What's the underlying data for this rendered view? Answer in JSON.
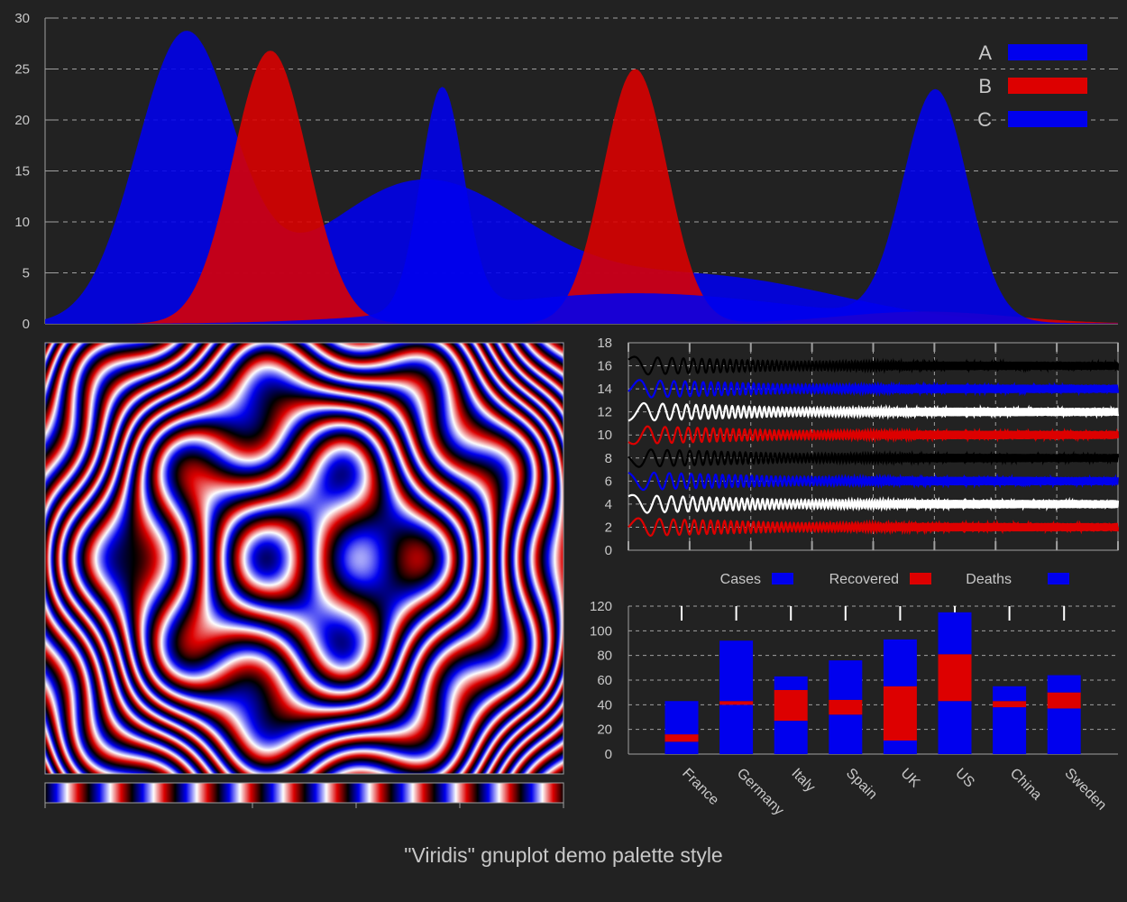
{
  "caption": "\"Viridis\" gnuplot demo palette style",
  "colors": {
    "background": "#222222",
    "axis": "#a0a0a0",
    "text": "#c8c8c8",
    "blue": "#0000ee",
    "red": "#dd0000",
    "black": "#000000",
    "white": "#ffffff"
  },
  "chart_data": [
    {
      "type": "area",
      "ylim": [
        0,
        30
      ],
      "xlim": [
        0,
        1
      ],
      "yticks": [
        "0",
        "5",
        "10",
        "15",
        "20",
        "25",
        "30"
      ],
      "grid": true,
      "legend_position": "top-right",
      "series": [
        {
          "name": "A",
          "color": "#0000ee",
          "peaks": [
            {
              "x": 0.13,
              "height": 27.5,
              "width": 0.045
            },
            {
              "x": 0.35,
              "height": 13.8,
              "width": 0.1
            },
            {
              "x": 0.62,
              "height": 4.5,
              "width": 0.12
            }
          ]
        },
        {
          "name": "B",
          "color": "#dd0000",
          "peaks": [
            {
              "x": 0.21,
              "height": 26.8,
              "width": 0.035
            },
            {
              "x": 0.55,
              "height": 25.0,
              "width": 0.03
            },
            {
              "x": 0.82,
              "height": 1.2,
              "width": 0.08
            }
          ]
        },
        {
          "name": "C",
          "color": "#0000ee",
          "peaks": [
            {
              "x": 0.37,
              "height": 21.8,
              "width": 0.02
            },
            {
              "x": 0.83,
              "height": 22.5,
              "width": 0.03
            },
            {
              "x": 0.55,
              "height": 3.0,
              "width": 0.15
            }
          ]
        }
      ]
    },
    {
      "type": "heatmap",
      "description_function": "sin(x^2 + y^2) style interference pattern with blue-white-red palette",
      "palette": [
        "#000000",
        "#0000ee",
        "#ffffff",
        "#dd0000"
      ],
      "colorbar": true
    },
    {
      "type": "line",
      "ylim": [
        0,
        18
      ],
      "yticks": [
        "0",
        "2",
        "4",
        "6",
        "8",
        "10",
        "12",
        "14",
        "16",
        "18"
      ],
      "grid": true,
      "series": [
        {
          "offset": 2,
          "color": "#dd0000"
        },
        {
          "offset": 4,
          "color": "#ffffff"
        },
        {
          "offset": 6,
          "color": "#0000ee"
        },
        {
          "offset": 8,
          "color": "#000000"
        },
        {
          "offset": 10,
          "color": "#dd0000"
        },
        {
          "offset": 12,
          "color": "#ffffff"
        },
        {
          "offset": 14,
          "color": "#0000ee"
        },
        {
          "offset": 16,
          "color": "#000000"
        }
      ]
    },
    {
      "type": "bar",
      "stacked": true,
      "ylim": [
        0,
        120
      ],
      "yticks": [
        "0",
        "20",
        "40",
        "60",
        "80",
        "100",
        "120"
      ],
      "grid": true,
      "legend_position": "top",
      "categories": [
        "France",
        "Germany",
        "Italy",
        "Spain",
        "UK",
        "US",
        "China",
        "Sweden"
      ],
      "series": [
        {
          "name": "Cases",
          "color": "#0000ee",
          "values": [
            10,
            40,
            27,
            32,
            11,
            43,
            38,
            37
          ]
        },
        {
          "name": "Recovered",
          "color": "#dd0000",
          "values": [
            6,
            3,
            25,
            12,
            44,
            38,
            5,
            13
          ]
        },
        {
          "name": "Deaths",
          "color": "#0000ee",
          "values": [
            27,
            49,
            11,
            32,
            38,
            34,
            12,
            14
          ]
        }
      ]
    }
  ]
}
